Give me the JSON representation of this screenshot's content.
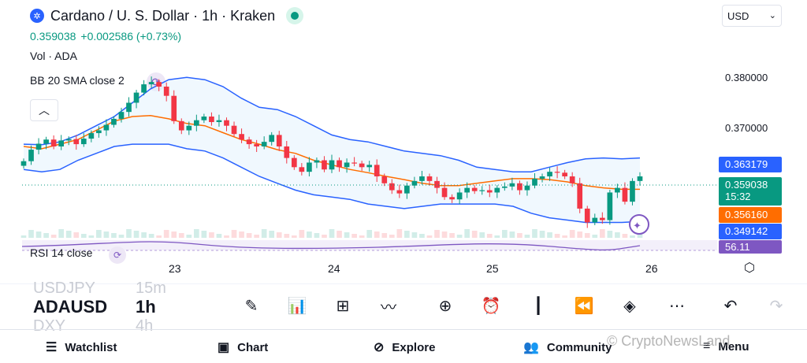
{
  "header": {
    "title": "Cardano / U. S. Dollar · 1h · Kraken",
    "logo_icon": "cardano-icon",
    "currency": "USD",
    "price": "0.359038",
    "change": "+0.002586 (+0.73%)",
    "volume_label": "Vol · ADA",
    "indicator_label": "BB 20 SMA close 2"
  },
  "price_axis": {
    "ticks": [
      "0.380000",
      "0.370000"
    ],
    "badges": {
      "bb_upper": "0.363179",
      "last_price": "0.359038",
      "countdown": "15:32",
      "bb_basis": "0.356160",
      "bb_lower": "0.349142",
      "rsi": "56.11"
    }
  },
  "rsi_label": "RSI 14 close",
  "time_axis": [
    "23",
    "24",
    "25",
    "26"
  ],
  "toolbar": {
    "ghost_symbol_above": "USDJPY",
    "ghost_interval_above": "15m",
    "symbol": "ADAUSD",
    "interval": "1h",
    "ghost_symbol_below": "DXY",
    "ghost_interval_below": "4h",
    "tools": [
      "draw-icon",
      "indicators-icon",
      "layout-icon",
      "compare-icon",
      "add-icon",
      "alert-icon",
      "bar-type-icon",
      "replay-icon",
      "layers-icon",
      "more-icon",
      "undo-icon",
      "redo-icon"
    ]
  },
  "bottom_nav": {
    "watchlist": "Watchlist",
    "chart": "Chart",
    "explore": "Explore",
    "community": "Community",
    "menu": "Menu"
  },
  "watermark": "© CryptoNewsLand",
  "colors": {
    "up": "#089981",
    "down": "#f23645",
    "bb_band": "#2962ff",
    "bb_basis": "#ff6d00",
    "rsi": "#7e57c2"
  },
  "chart_data": {
    "type": "candlestick",
    "symbol": "ADAUSD",
    "interval": "1h",
    "x_ticks": [
      "23",
      "24",
      "25",
      "26"
    ],
    "y_ticks": [
      0.38,
      0.37
    ],
    "ylim": [
      0.346,
      0.385
    ],
    "last_price": 0.359038,
    "bb_upper_last": 0.363179,
    "bb_basis_last": 0.35616,
    "bb_lower_last": 0.349142,
    "rsi_last": 56.11,
    "closes": [
      0.3623,
      0.3648,
      0.3661,
      0.367,
      0.3655,
      0.3668,
      0.3671,
      0.366,
      0.3672,
      0.3684,
      0.369,
      0.3702,
      0.3715,
      0.373,
      0.375,
      0.3772,
      0.379,
      0.3795,
      0.3785,
      0.3765,
      0.371,
      0.369,
      0.37,
      0.3712,
      0.372,
      0.3708,
      0.3712,
      0.37,
      0.3682,
      0.367,
      0.366,
      0.3655,
      0.3665,
      0.368,
      0.3655,
      0.363,
      0.361,
      0.36,
      0.362,
      0.3625,
      0.3605,
      0.3625,
      0.361,
      0.362,
      0.3618,
      0.361,
      0.3615,
      0.359,
      0.3575,
      0.356,
      0.3553,
      0.357,
      0.358,
      0.359,
      0.358,
      0.3565,
      0.3545,
      0.354,
      0.3555,
      0.3565,
      0.3558,
      0.356,
      0.3555,
      0.3565,
      0.3568,
      0.3575,
      0.356,
      0.357,
      0.3585,
      0.359,
      0.36,
      0.3598,
      0.359,
      0.3575,
      0.352,
      0.349,
      0.35,
      0.3495,
      0.3555,
      0.3565,
      0.3535,
      0.358,
      0.359
    ],
    "bb_upper": [
      0.366,
      0.3659,
      0.3665,
      0.368,
      0.37,
      0.372,
      0.375,
      0.378,
      0.38,
      0.3805,
      0.38,
      0.3785,
      0.376,
      0.374,
      0.3735,
      0.372,
      0.37,
      0.368,
      0.367,
      0.3665,
      0.3655,
      0.3645,
      0.364,
      0.3635,
      0.3625,
      0.361,
      0.3605,
      0.36,
      0.36,
      0.361,
      0.362,
      0.3628,
      0.363,
      0.3628,
      0.363
    ],
    "bb_basis": [
      0.3655,
      0.365,
      0.366,
      0.367,
      0.369,
      0.371,
      0.372,
      0.3722,
      0.3715,
      0.3705,
      0.37,
      0.3685,
      0.367,
      0.366,
      0.3648,
      0.364,
      0.3625,
      0.3615,
      0.3605,
      0.3598,
      0.359,
      0.3583,
      0.3575,
      0.357,
      0.357,
      0.3575,
      0.358,
      0.3585,
      0.3585,
      0.3583,
      0.3578,
      0.357,
      0.3565,
      0.3562,
      0.3562
    ],
    "bb_lower": [
      0.3605,
      0.36,
      0.3605,
      0.3625,
      0.364,
      0.3655,
      0.366,
      0.366,
      0.366,
      0.365,
      0.3645,
      0.363,
      0.361,
      0.359,
      0.3575,
      0.356,
      0.355,
      0.3545,
      0.354,
      0.353,
      0.3525,
      0.352,
      0.3525,
      0.353,
      0.353,
      0.353,
      0.353,
      0.3525,
      0.351,
      0.35,
      0.3495,
      0.349,
      0.349,
      0.349,
      0.3492
    ]
  }
}
